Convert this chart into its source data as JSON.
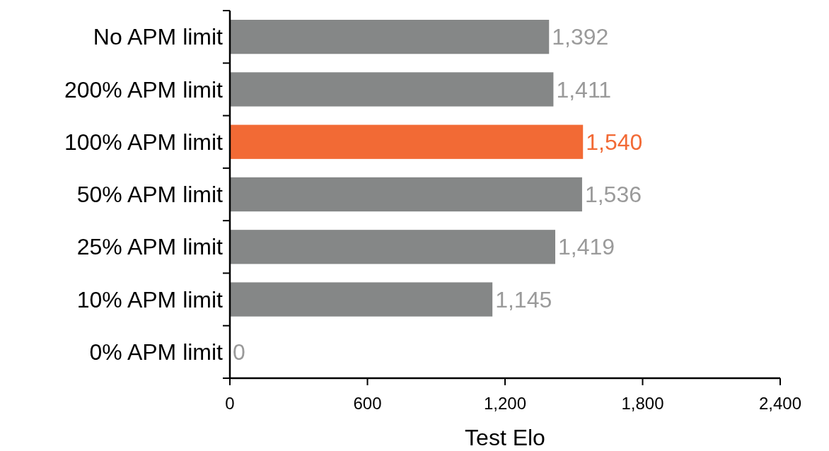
{
  "chart_data": {
    "type": "bar",
    "orientation": "horizontal",
    "xlabel": "Test Elo",
    "categories": [
      "No APM limit",
      "200% APM limit",
      "100% APM limit",
      "50% APM limit",
      "25% APM limit",
      "10% APM limit",
      "0% APM limit"
    ],
    "values": [
      1392,
      1411,
      1540,
      1536,
      1419,
      1145,
      0
    ],
    "colors": [
      "#858787",
      "#858787",
      "#f26a35",
      "#858787",
      "#858787",
      "#858787",
      "#858787"
    ],
    "value_labels": [
      "1,392",
      "1,411",
      "1,540",
      "1,536",
      "1,419",
      "1,145",
      "0"
    ],
    "xlim": [
      0,
      2400
    ],
    "xticks": [
      0,
      600,
      {
        "value": 1200,
        "label": "1,200"
      },
      {
        "value": 1800,
        "label": "1,800"
      },
      {
        "value": 2400,
        "label": "2,400"
      }
    ],
    "grid": false
  }
}
